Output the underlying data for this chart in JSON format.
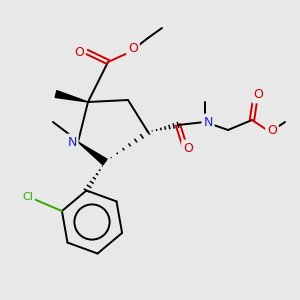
{
  "bg_color": "#e8e8e8",
  "C": "#000000",
  "N": "#2020cc",
  "O": "#cc0000",
  "Cl": "#33aa00",
  "figsize": [
    3.0,
    3.0
  ],
  "dpi": 100
}
